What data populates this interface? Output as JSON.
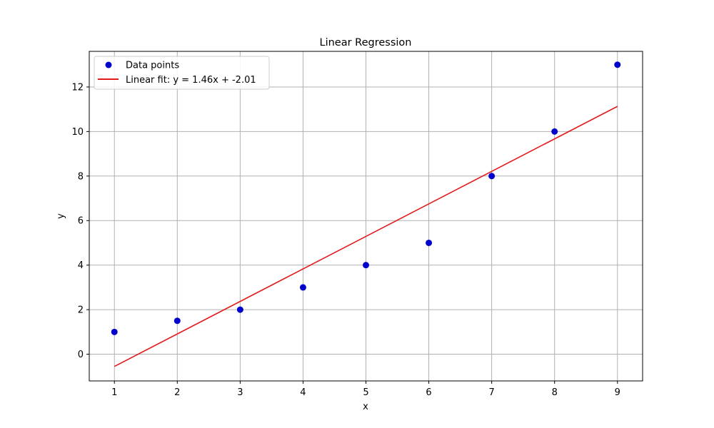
{
  "chart_data": {
    "type": "scatter",
    "title": "Linear Regression",
    "xlabel": "x",
    "ylabel": "y",
    "xlim": [
      0.6,
      9.4
    ],
    "ylim": [
      -1.2,
      13.6
    ],
    "xticks": [
      1,
      2,
      3,
      4,
      5,
      6,
      7,
      8,
      9
    ],
    "yticks": [
      0,
      2,
      4,
      6,
      8,
      10,
      12
    ],
    "grid": true,
    "legend_position": "top-left",
    "series": [
      {
        "name": "Data points",
        "kind": "scatter",
        "color": "#0000cc",
        "x": [
          1,
          2,
          3,
          4,
          5,
          6,
          7,
          8,
          9
        ],
        "y": [
          1,
          1.5,
          2,
          3,
          4,
          5,
          8,
          10,
          13
        ]
      },
      {
        "name": "Linear fit: y = 1.46x + -2.01",
        "kind": "line",
        "color": "#e31a1c",
        "x": [
          1,
          9
        ],
        "y": [
          -0.55,
          11.13
        ]
      }
    ]
  }
}
